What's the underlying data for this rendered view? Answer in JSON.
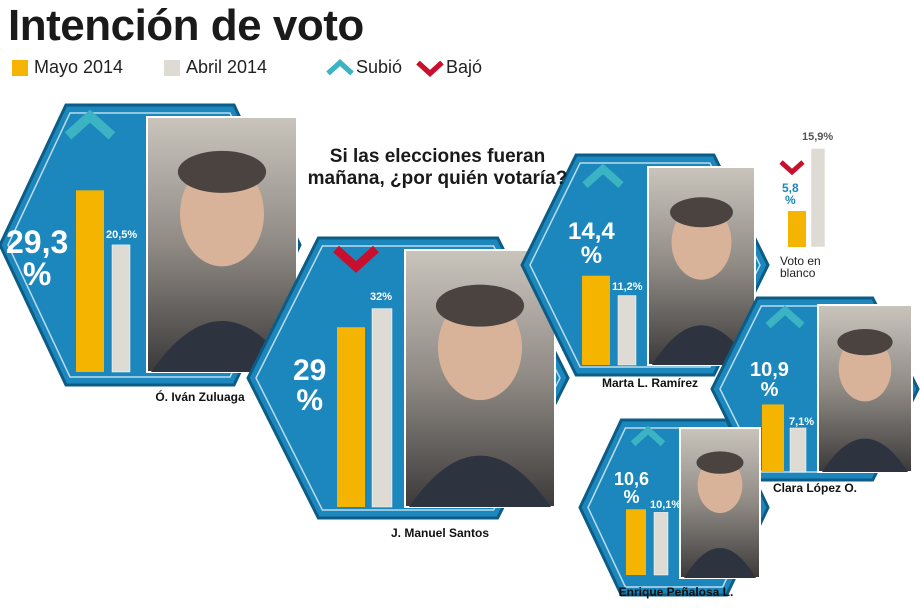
{
  "chart_data": {
    "type": "bar",
    "title": "Intención de voto",
    "subtitle": "Si las elecciones fueran mañana, ¿por quién votaría?",
    "categories": [
      "Ó. Iván Zuluaga",
      "J. Manuel Santos",
      "Marta L. Ramírez",
      "Clara López O.",
      "Enrique Peñalosa L.",
      "Voto en blanco"
    ],
    "series": [
      {
        "name": "Mayo 2014",
        "color": "#f5b400",
        "values": [
          29.3,
          29,
          14.4,
          10.9,
          10.6,
          5.8
        ],
        "value_labels": [
          "29,3 %",
          "29 %",
          "14,4 %",
          "10,9 %",
          "10,6 %",
          "5,8 %"
        ]
      },
      {
        "name": "Abril 2014",
        "color": "#dddbd3",
        "values": [
          20.5,
          32,
          11.2,
          7.1,
          10.1,
          15.9
        ],
        "value_labels": [
          "20,5%",
          "32%",
          "11,2%",
          "7,1%",
          "10,1%",
          "15,9%"
        ]
      }
    ],
    "trend": [
      "up",
      "down",
      "up",
      "up",
      "up",
      "down"
    ],
    "trend_legend": [
      {
        "key": "up",
        "label": "Subió",
        "color": "#3bb3c3"
      },
      {
        "key": "down",
        "label": "Bajó",
        "color": "#c8102e"
      }
    ]
  }
}
